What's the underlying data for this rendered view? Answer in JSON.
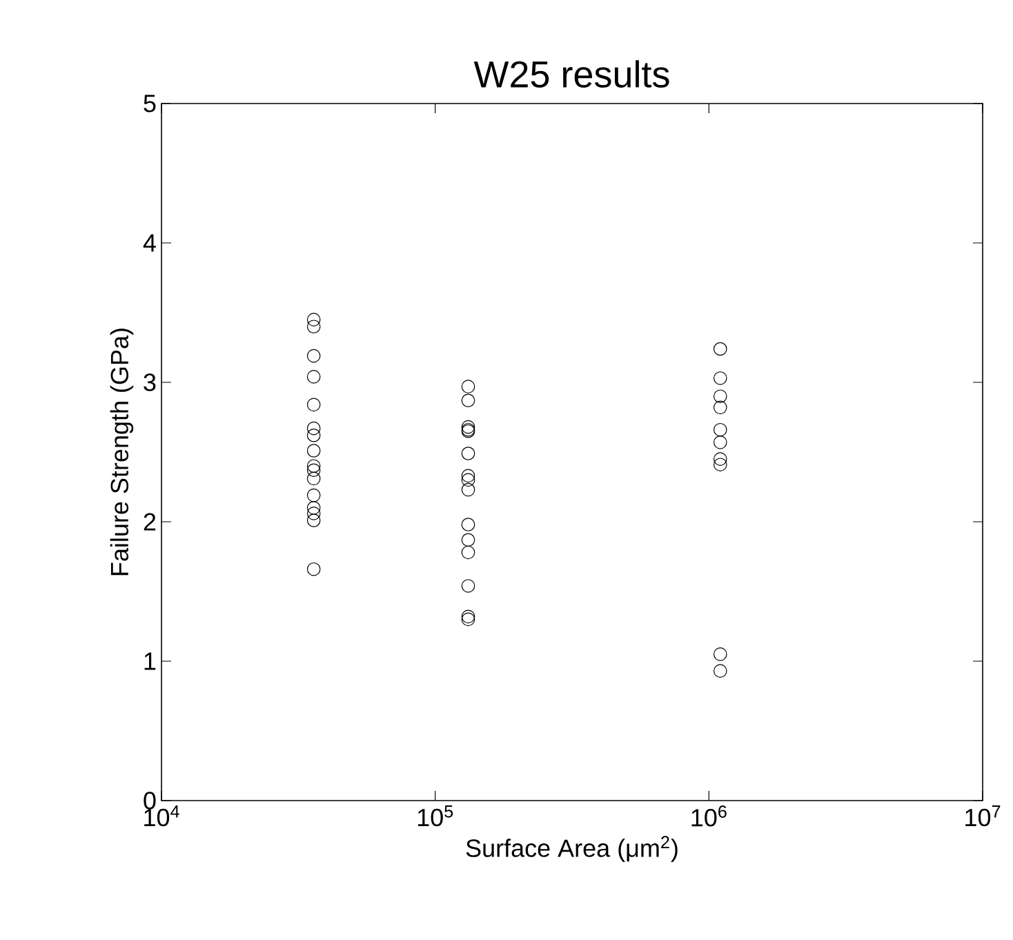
{
  "chart_data": {
    "type": "scatter",
    "title": "W25 results",
    "xlabel": "Surface Area (μm$^{2}$)",
    "ylabel": "Failure Strength (GPa)",
    "log": "x",
    "marker": "circle",
    "grid": false,
    "xlim": [
      10000,
      10000000
    ],
    "xticks": [
      {
        "value": 10000,
        "label": "10$^{4}$"
      },
      {
        "value": 100000,
        "label": "10$^{5}$"
      },
      {
        "value": 1000000,
        "label": "10$^{6}$"
      },
      {
        "value": 10000000,
        "label": "10$^{7}$"
      }
    ],
    "ylim": [
      0,
      5
    ],
    "yticks": [
      0,
      1,
      2,
      3,
      4,
      5
    ],
    "series": [
      {
        "color": "#000000",
        "x": [
          36000,
          36000,
          36000,
          36000,
          36000,
          36000,
          36000,
          36000,
          36000,
          36000,
          36000,
          36000,
          36000,
          36000,
          36000,
          36000,
          132000,
          132000,
          132000,
          132000,
          132000,
          132000,
          132000,
          132000,
          132000,
          132000,
          132000,
          132000,
          132000,
          132000,
          132000,
          1100000,
          1100000,
          1100000,
          1100000,
          1100000,
          1100000,
          1100000,
          1100000,
          1100000,
          1100000
        ],
        "values": [
          3.45,
          3.4,
          3.19,
          3.04,
          2.84,
          2.67,
          2.62,
          2.51,
          2.4,
          2.37,
          2.31,
          2.19,
          2.1,
          2.06,
          2.01,
          1.66,
          2.97,
          2.87,
          2.68,
          2.66,
          2.65,
          2.49,
          2.33,
          2.3,
          2.23,
          1.98,
          1.87,
          1.78,
          1.54,
          1.32,
          1.3,
          3.24,
          3.03,
          2.9,
          2.82,
          2.66,
          2.57,
          2.45,
          2.41,
          1.05,
          0.93
        ]
      }
    ]
  }
}
